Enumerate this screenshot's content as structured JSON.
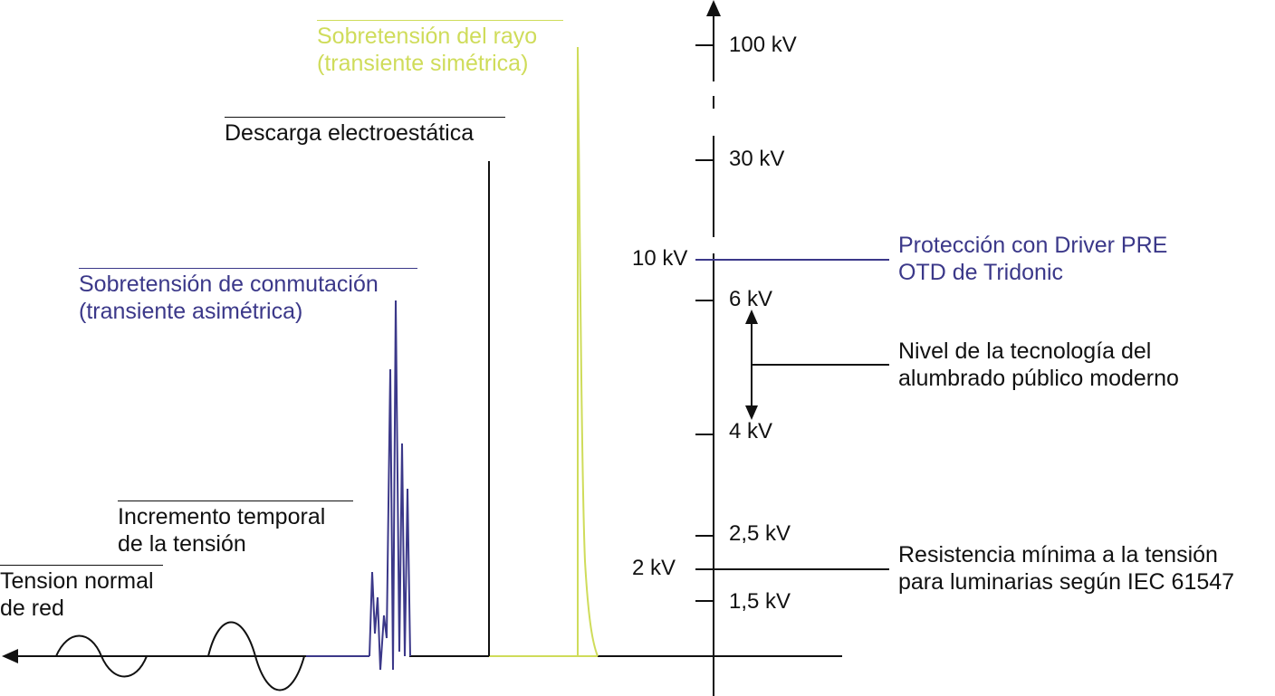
{
  "colors": {
    "black": "#111111",
    "blue": "#3b3889",
    "yellow": "#cfdc5a"
  },
  "labels": {
    "normal_line1": "Tension normal",
    "normal_line2": "de red",
    "temporal_line1": "Incremento temporal",
    "temporal_line2": "de la tensión",
    "switching_line1": "Sobretensión de conmutación",
    "switching_line2": "(transiente asimétrica)",
    "esd": "Descarga electroestática",
    "lightning_line1": "Sobretensión del rayo",
    "lightning_line2": "(transiente simétrica)",
    "protection_line1": "Protección con Driver PRE",
    "protection_line2": "OTD de Tridonic",
    "street_line1": "Nivel de la tecnología del",
    "street_line2": "alumbrado público moderno",
    "resistance_line1": "Resistencia mínima a la tensión",
    "resistance_line2": "para luminarias según IEC 61547"
  },
  "axis": {
    "ticks_right": [
      "100 kV",
      "30 kV",
      "6 kV",
      "4 kV",
      "2,5 kV",
      "1,5 kV"
    ],
    "ticks_left": [
      "10 kV",
      "2 kV"
    ]
  }
}
